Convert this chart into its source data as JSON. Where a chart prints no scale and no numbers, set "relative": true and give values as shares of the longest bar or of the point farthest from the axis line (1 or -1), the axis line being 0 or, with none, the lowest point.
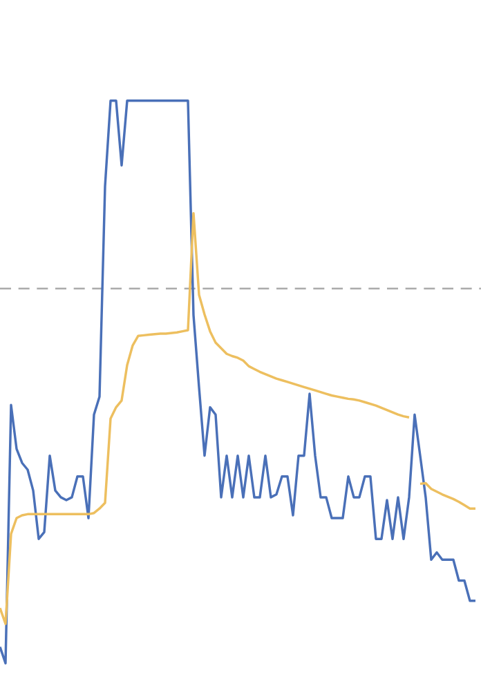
{
  "chart_data": {
    "type": "line",
    "relative": true,
    "categories": [
      null,
      null,
      null,
      null,
      null,
      null,
      null,
      null,
      null,
      null,
      null,
      null,
      null,
      null,
      null,
      null,
      null,
      null,
      null,
      null,
      null,
      null,
      null,
      null,
      null,
      null,
      null,
      null,
      null,
      null,
      null,
      null,
      null,
      null,
      null,
      null,
      null,
      null,
      null,
      null,
      null,
      null,
      null,
      null,
      null,
      null,
      null,
      null,
      null,
      null,
      null,
      null,
      null,
      null,
      null,
      null,
      null,
      null,
      null,
      null,
      null,
      null,
      null,
      null,
      null,
      null,
      null,
      null,
      null,
      null,
      null,
      null,
      null,
      null,
      null,
      null,
      null,
      null,
      null,
      null,
      null,
      null,
      null,
      null,
      null,
      null,
      null
    ],
    "ref_lines": [
      {
        "axis": "y",
        "value": 0.666,
        "color": "#aaaaaa",
        "line_style": "dashed"
      }
    ],
    "series": [
      {
        "color": "#4a70b8",
        "values": [
          0.029,
          0,
          0.459,
          0.381,
          0.356,
          0.344,
          0.307,
          0.221,
          0.233,
          0.369,
          0.307,
          0.295,
          0.29,
          0.295,
          0.332,
          0.332,
          0.258,
          0.442,
          0.474,
          0.848,
          1.0,
          1.0,
          0.885,
          1.0,
          1.0,
          1.0,
          1.0,
          1.0,
          1.0,
          1.0,
          1.0,
          1.0,
          1.0,
          1.0,
          1.0,
          0.619,
          0.491,
          0.369,
          0.455,
          0.442,
          0.295,
          0.369,
          0.295,
          0.369,
          0.295,
          0.369,
          0.295,
          0.295,
          0.369,
          0.295,
          0.3,
          0.332,
          0.332,
          0.263,
          0.369,
          0.369,
          0.479,
          0.369,
          0.295,
          0.295,
          0.258,
          0.258,
          0.258,
          0.332,
          0.295,
          0.295,
          0.332,
          0.332,
          0.221,
          0.221,
          0.29,
          0.221,
          0.295,
          0.221,
          0.295,
          0.442,
          0.369,
          0.295,
          0.184,
          0.197,
          0.184,
          0.184,
          0.184,
          0.147,
          0.147,
          0.111,
          0.111
        ]
      },
      {
        "color": "#edbf5f",
        "values": [
          0.098,
          0.07,
          0.23,
          0.258,
          0.263,
          0.265,
          0.265,
          0.265,
          0.265,
          0.265,
          0.265,
          0.265,
          0.265,
          0.265,
          0.265,
          0.265,
          0.265,
          0.267,
          0.275,
          0.285,
          0.435,
          0.455,
          0.467,
          0.53,
          0.565,
          0.582,
          0.583,
          0.584,
          0.585,
          0.586,
          0.586,
          0.587,
          0.588,
          0.59,
          0.592,
          0.8,
          0.655,
          0.62,
          0.59,
          0.57,
          0.56,
          0.55,
          0.546,
          0.543,
          0.538,
          0.528,
          0.523,
          0.518,
          0.514,
          0.51,
          0.506,
          0.503,
          0.5,
          0.497,
          0.494,
          0.491,
          0.488,
          0.485,
          0.482,
          0.479,
          0.476,
          0.474,
          0.472,
          0.47,
          0.469,
          0.467,
          0.464,
          0.461,
          0.458,
          0.454,
          0.45,
          0.446,
          0.442,
          0.439,
          0.437,
          null,
          0.319,
          0.32,
          0.31,
          0.305,
          0.3,
          0.296,
          0.292,
          0.287,
          0.281,
          0.275,
          0.275
        ]
      }
    ]
  }
}
